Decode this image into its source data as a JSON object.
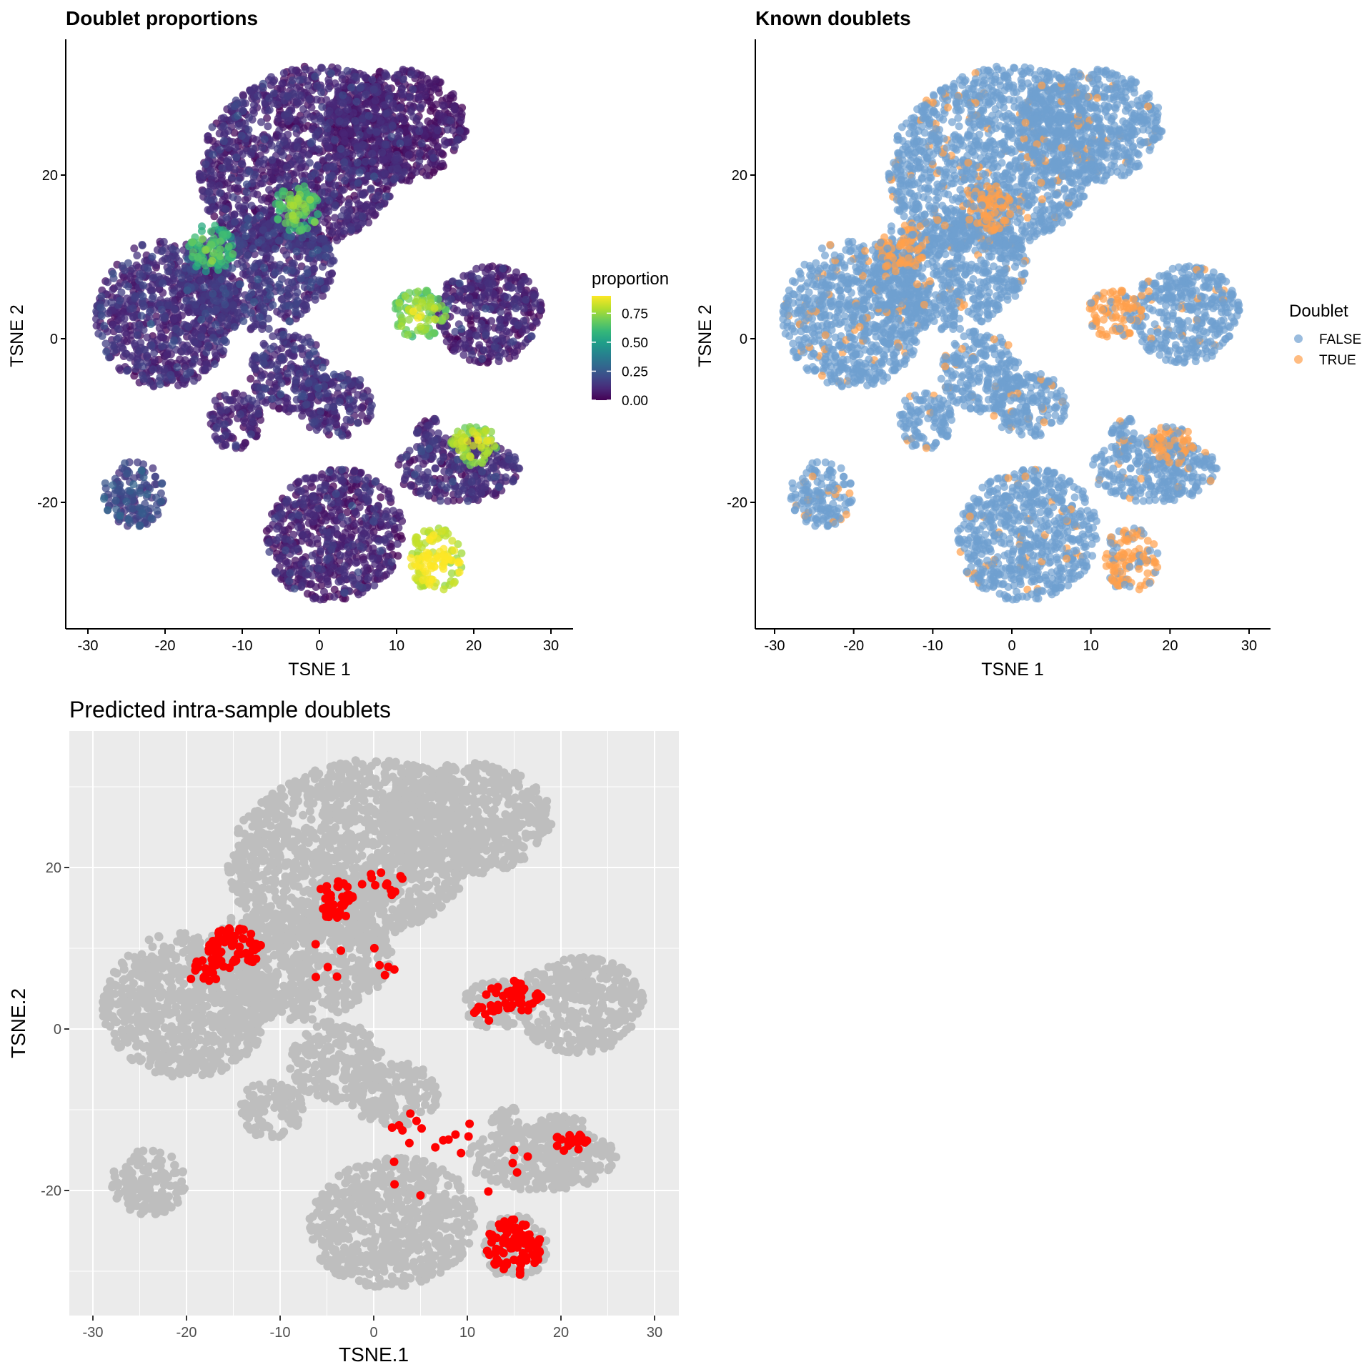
{
  "colors": {
    "viridis": [
      "#440154",
      "#482878",
      "#3e4a89",
      "#31688e",
      "#26828e",
      "#1f9e89",
      "#35b779",
      "#6dcd59",
      "#b4de2c",
      "#fde725"
    ],
    "false_blue": "#6f9fd0",
    "true_orange": "#ffa04c",
    "pred_grey": "#bebebe",
    "pred_red": "#ff0000",
    "panel_grey": "#ebebeb"
  },
  "chart_data": [
    {
      "type": "scatter",
      "title": "Doublet proportions",
      "xlabel": "TSNE 1",
      "ylabel": "TSNE 2",
      "xlim": [
        -32,
        32
      ],
      "ylim": [
        -36,
        37
      ],
      "xticks": [
        -30,
        -20,
        -10,
        0,
        10,
        20,
        30
      ],
      "yticks": [
        -20,
        0,
        20
      ],
      "color_variable": "proportion",
      "colorbar": {
        "title": "proportion",
        "ticks": [
          0.0,
          0.25,
          0.5,
          0.75
        ],
        "tick_labels": [
          "0.00",
          "0.25",
          "0.50",
          "0.75"
        ],
        "range": [
          0,
          0.9
        ]
      },
      "grid": false,
      "legend_position": "right",
      "clusters": [
        {
          "cx": -2,
          "cy": 22,
          "rx": 14,
          "ry": 11,
          "angle": 0.35,
          "value": 0.08
        },
        {
          "cx": 10,
          "cy": 26,
          "rx": 9,
          "ry": 7,
          "angle": 0,
          "value": 0.05
        },
        {
          "cx": -20,
          "cy": 3,
          "rx": 9,
          "ry": 9,
          "angle": 0,
          "value": 0.1
        },
        {
          "cx": -8,
          "cy": 8,
          "rx": 10,
          "ry": 7,
          "angle": 0.2,
          "value": 0.12
        },
        {
          "cx": -14,
          "cy": 11,
          "rx": 3,
          "ry": 3,
          "angle": 0,
          "value": 0.55
        },
        {
          "cx": -3,
          "cy": 16,
          "rx": 3,
          "ry": 3,
          "angle": 0,
          "value": 0.6
        },
        {
          "cx": -4,
          "cy": -4,
          "rx": 5,
          "ry": 5,
          "angle": 0,
          "value": 0.1
        },
        {
          "cx": 2,
          "cy": -8,
          "rx": 5,
          "ry": 4,
          "angle": 0,
          "value": 0.1
        },
        {
          "cx": -11,
          "cy": -10,
          "rx": 3.5,
          "ry": 3.5,
          "angle": 0,
          "value": 0.08
        },
        {
          "cx": 22,
          "cy": 3,
          "rx": 7,
          "ry": 6,
          "angle": 0,
          "value": 0.07
        },
        {
          "cx": 13,
          "cy": 3,
          "rx": 3.5,
          "ry": 3,
          "angle": 0,
          "value": 0.68
        },
        {
          "cx": -24,
          "cy": -19,
          "rx": 4,
          "ry": 4,
          "angle": 0,
          "value": 0.18
        },
        {
          "cx": 2,
          "cy": -24,
          "rx": 9,
          "ry": 8,
          "angle": 0.3,
          "value": 0.07
        },
        {
          "cx": 18,
          "cy": -16,
          "rx": 8,
          "ry": 4,
          "angle": 0,
          "value": 0.1
        },
        {
          "cx": 20,
          "cy": -13,
          "rx": 3,
          "ry": 2.5,
          "angle": 0,
          "value": 0.72
        },
        {
          "cx": 15,
          "cy": -27,
          "rx": 3.5,
          "ry": 4,
          "angle": 0,
          "value": 0.8
        },
        {
          "cx": 14,
          "cy": -12,
          "rx": 1.5,
          "ry": 3,
          "angle": 0,
          "value": 0.1
        }
      ]
    },
    {
      "type": "scatter",
      "title": "Known doublets",
      "xlabel": "TSNE 1",
      "ylabel": "TSNE 2",
      "xlim": [
        -32,
        32
      ],
      "ylim": [
        -36,
        37
      ],
      "xticks": [
        -30,
        -20,
        -10,
        0,
        10,
        20,
        30
      ],
      "yticks": [
        -20,
        0,
        20
      ],
      "grid": false,
      "legend": {
        "title": "Doublet",
        "entries": [
          "FALSE",
          "TRUE"
        ],
        "position": "right"
      },
      "series": [
        {
          "name": "FALSE"
        },
        {
          "name": "TRUE",
          "clusters": [
            [
              13,
              3
            ],
            [
              15,
              -27
            ],
            [
              20,
              -13
            ],
            [
              -24,
              -19
            ]
          ]
        }
      ]
    },
    {
      "type": "scatter",
      "title": "Predicted intra-sample doublets",
      "xlabel": "TSNE.1",
      "ylabel": "TSNE.2",
      "xlim": [
        -32,
        32
      ],
      "ylim": [
        -36,
        37
      ],
      "xticks": [
        -30,
        -20,
        -10,
        0,
        10,
        20,
        30
      ],
      "yticks": [
        -20,
        0,
        20
      ],
      "grid": true,
      "predicted_clusters": [
        {
          "cx": -15,
          "cy": 10,
          "rx": 3,
          "ry": 2.5,
          "n": 70
        },
        {
          "cx": -18,
          "cy": 7,
          "rx": 2,
          "ry": 1.5,
          "n": 18
        },
        {
          "cx": -4,
          "cy": 16,
          "rx": 2,
          "ry": 2.5,
          "n": 40
        },
        {
          "cx": 1,
          "cy": 18,
          "rx": 2.5,
          "ry": 1.5,
          "n": 12
        },
        {
          "cx": 15,
          "cy": 4,
          "rx": 3,
          "ry": 2,
          "n": 40
        },
        {
          "cx": 12,
          "cy": 2,
          "rx": 2,
          "ry": 1,
          "n": 14
        },
        {
          "cx": 15,
          "cy": -27,
          "rx": 3,
          "ry": 3.5,
          "n": 80
        },
        {
          "cx": 21,
          "cy": -14,
          "rx": 2,
          "ry": 1.2,
          "n": 22
        },
        {
          "cx": 8,
          "cy": -15,
          "rx": 9,
          "ry": 6,
          "n": 22
        },
        {
          "cx": -3,
          "cy": 8,
          "rx": 6,
          "ry": 3,
          "n": 10
        }
      ]
    }
  ]
}
